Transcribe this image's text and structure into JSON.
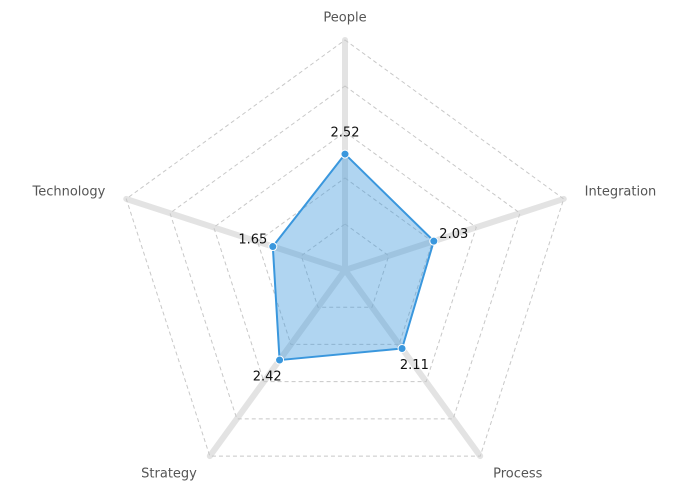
{
  "chart_data": {
    "type": "radar",
    "categories": [
      "People",
      "Integration",
      "Process",
      "Strategy",
      "Technology"
    ],
    "series": [
      {
        "color": "#3a97dd",
        "values": [
          2.52,
          2.03,
          2.11,
          2.42,
          1.65
        ]
      }
    ],
    "rlim": [
      0,
      5
    ],
    "rticks": [
      1,
      2,
      3,
      4,
      5
    ],
    "grid": true
  }
}
